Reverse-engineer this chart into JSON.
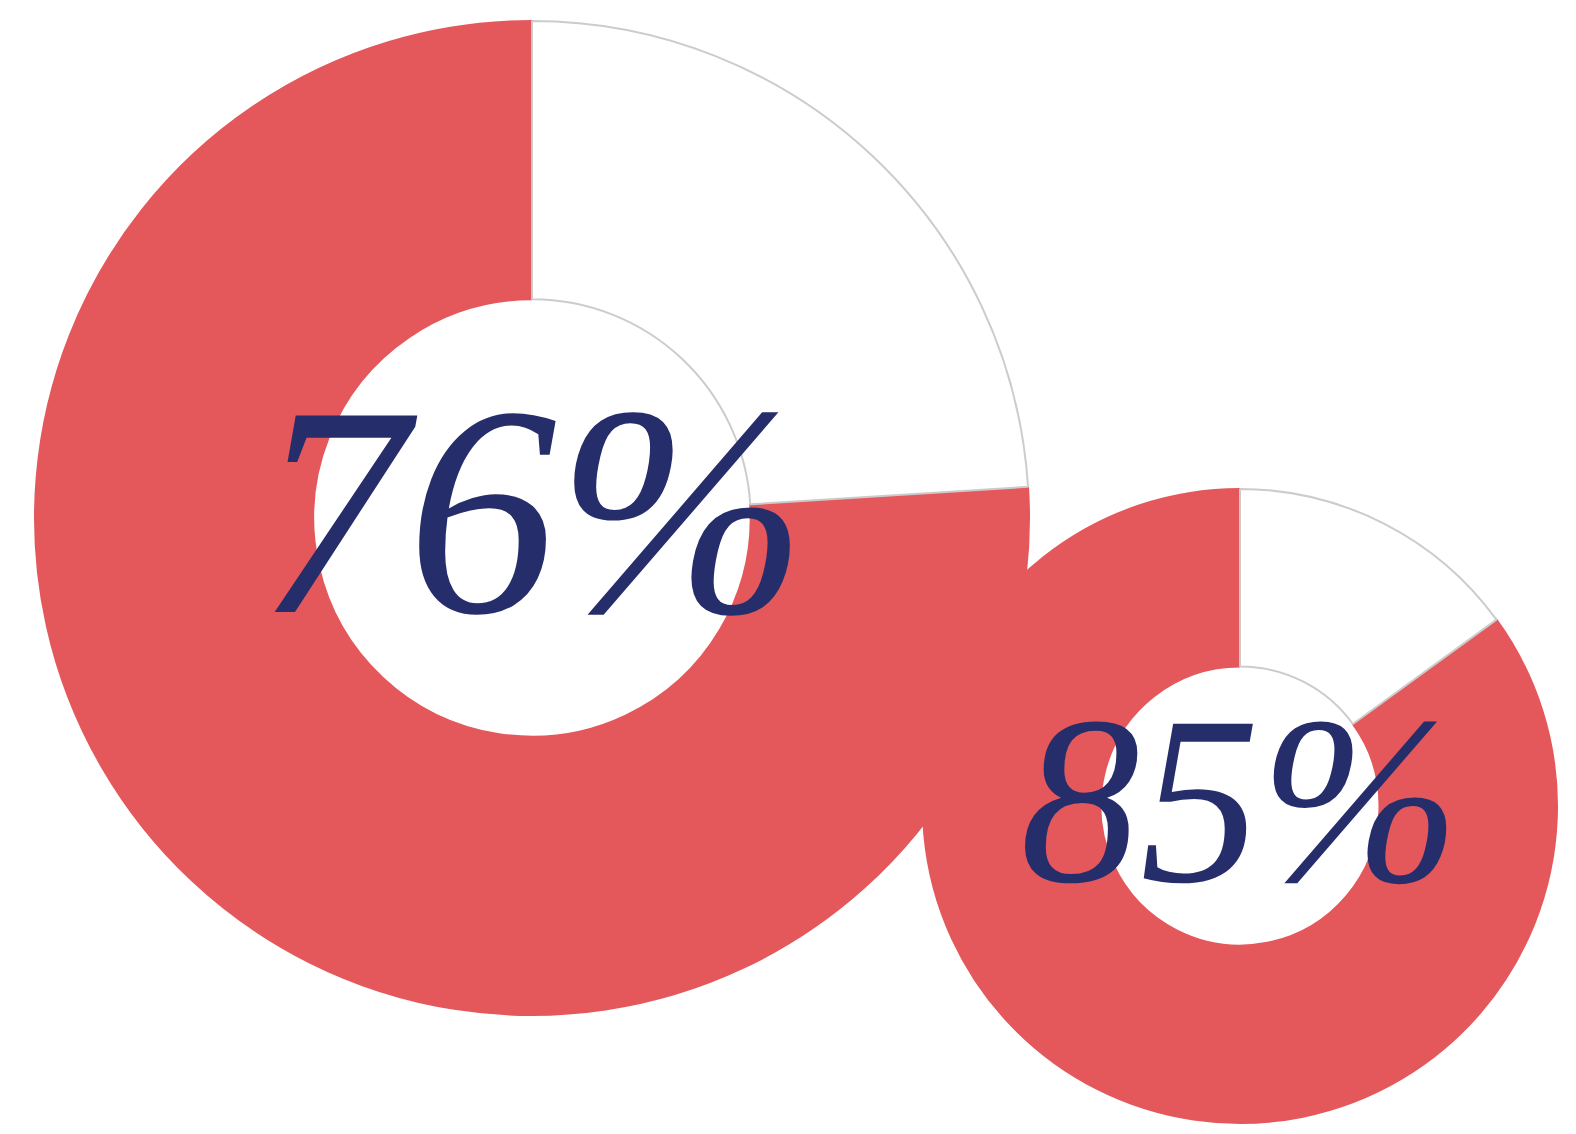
{
  "chart_data": [
    {
      "type": "donut",
      "categories": [
        null,
        null
      ],
      "values": [
        76,
        24
      ],
      "colors": [
        "#e4585c",
        "#ffffff"
      ],
      "value_labels": [
        "76%",
        null
      ]
    },
    {
      "type": "donut",
      "categories": [
        null,
        null
      ],
      "values": [
        85,
        15
      ],
      "colors": [
        "#e4585c",
        "#ffffff"
      ],
      "value_labels": [
        "85%",
        null
      ]
    }
  ]
}
